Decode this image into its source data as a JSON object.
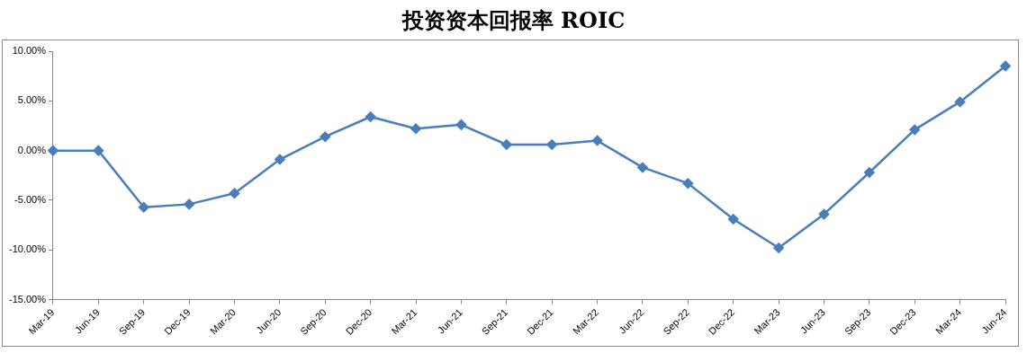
{
  "chart_data": {
    "type": "line",
    "title": "投资资本回报率 ROIC",
    "categories": [
      "Mar-19",
      "Jun-19",
      "Sep-19",
      "Dec-19",
      "Mar-20",
      "Jun-20",
      "Sep-20",
      "Dec-20",
      "Mar-21",
      "Jun-21",
      "Sep-21",
      "Dec-21",
      "Mar-22",
      "Jun-22",
      "Sep-22",
      "Dec-22",
      "Mar-23",
      "Jun-23",
      "Sep-23",
      "Dec-23",
      "Mar-24",
      "Jun-24"
    ],
    "series": [
      {
        "color": "#4a7ebb",
        "values": [
          0,
          0,
          -5.7,
          -5.4,
          -4.3,
          -0.9,
          1.4,
          3.4,
          2.2,
          2.6,
          0.6,
          0.6,
          1.0,
          -1.7,
          -3.3,
          -6.9,
          -9.8,
          -6.4,
          -2.2,
          2.1,
          4.9,
          8.5
        ]
      }
    ],
    "ylim": [
      -15,
      10
    ],
    "yticks": [
      {
        "value": -15,
        "label": "-15.00%"
      },
      {
        "value": -10,
        "label": "-10.00%"
      },
      {
        "value": -5,
        "label": "-5.00%"
      },
      {
        "value": 0,
        "label": "0.00%"
      },
      {
        "value": 5,
        "label": "5.00%"
      },
      {
        "value": 10,
        "label": "10.00%"
      }
    ],
    "grid": false,
    "legend": false,
    "marker": "diamond",
    "line_style": "solid"
  }
}
